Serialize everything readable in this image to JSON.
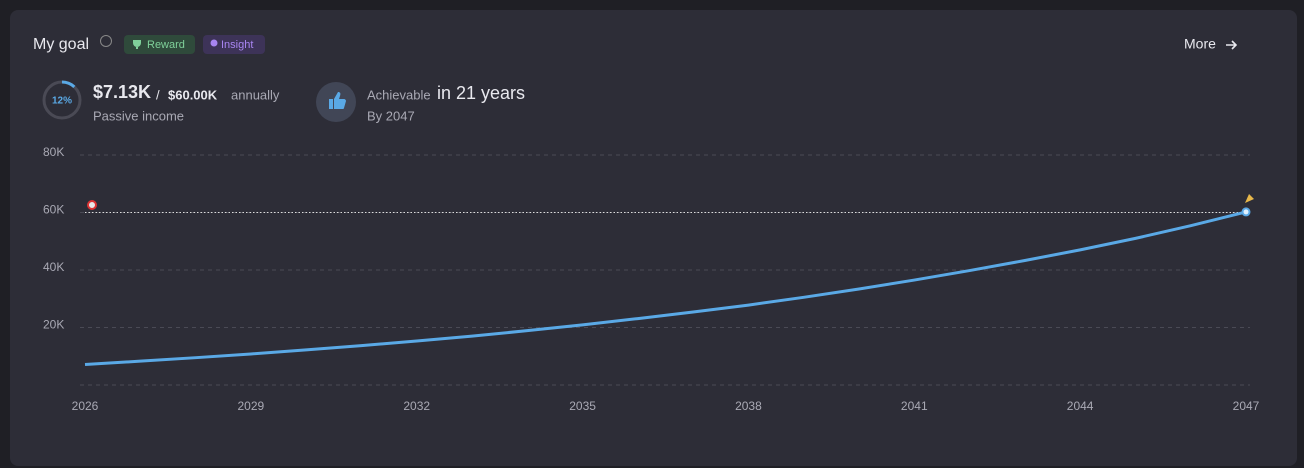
{
  "header": {
    "title": "My goal",
    "badges": [
      "Reward",
      "Insight"
    ],
    "more": "More"
  },
  "summary": {
    "progress": {
      "value": 12,
      "label": "12%"
    },
    "current": "$7.13K",
    "separator": "/",
    "target": "$60.00K",
    "period": "annually",
    "caption": "Passive income",
    "achievable": "Achievable",
    "duration": "in 21 years",
    "by": "By 2047"
  },
  "chart_data": {
    "type": "line",
    "color": "#5aa9e6",
    "x": [
      2026,
      2027,
      2028,
      2029,
      2030,
      2031,
      2032,
      2033,
      2034,
      2035,
      2036,
      2037,
      2038,
      2039,
      2040,
      2041,
      2042,
      2043,
      2044,
      2045,
      2046,
      2047
    ],
    "values": [
      7130,
      8300,
      9500,
      10800,
      12200,
      13700,
      15300,
      17000,
      18900,
      20900,
      23100,
      25400,
      27800,
      30500,
      33400,
      36500,
      39800,
      43300,
      47000,
      51000,
      55400,
      60200
    ],
    "target": 60000,
    "xlim": [
      2026,
      2047
    ],
    "xticks": [
      2026,
      2029,
      2032,
      2035,
      2038,
      2041,
      2044,
      2047
    ],
    "ylim": [
      0,
      80000
    ],
    "yticks": [
      {
        "value": 20000,
        "label": "20K"
      },
      {
        "value": 40000,
        "label": "40K"
      },
      {
        "value": 60000,
        "label": "60K"
      },
      {
        "value": 80000,
        "label": "80K"
      }
    ],
    "grid": true
  }
}
